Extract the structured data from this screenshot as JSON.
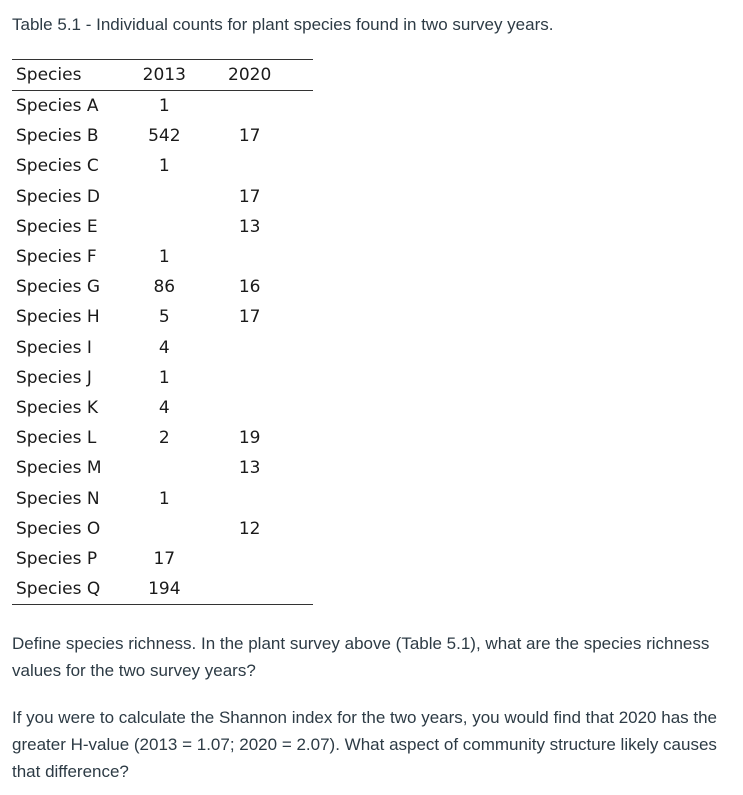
{
  "caption": "Table 5.1 - Individual counts for plant species found in two survey years.",
  "table": {
    "headers": [
      "Species",
      "2013",
      "2020"
    ],
    "rows": [
      {
        "species": "Species A",
        "y2013": "1",
        "y2020": ""
      },
      {
        "species": "Species B",
        "y2013": "542",
        "y2020": "17"
      },
      {
        "species": "Species C",
        "y2013": "1",
        "y2020": ""
      },
      {
        "species": "Species D",
        "y2013": "",
        "y2020": "17"
      },
      {
        "species": "Species E",
        "y2013": "",
        "y2020": "13"
      },
      {
        "species": "Species F",
        "y2013": "1",
        "y2020": ""
      },
      {
        "species": "Species G",
        "y2013": "86",
        "y2020": "16"
      },
      {
        "species": "Species H",
        "y2013": "5",
        "y2020": "17"
      },
      {
        "species": "Species I",
        "y2013": "4",
        "y2020": ""
      },
      {
        "species": "Species J",
        "y2013": "1",
        "y2020": ""
      },
      {
        "species": "Species K",
        "y2013": "4",
        "y2020": ""
      },
      {
        "species": "Species L",
        "y2013": "2",
        "y2020": "19"
      },
      {
        "species": "Species M",
        "y2013": "",
        "y2020": "13"
      },
      {
        "species": "Species N",
        "y2013": "1",
        "y2020": ""
      },
      {
        "species": "Species O",
        "y2013": "",
        "y2020": "12"
      },
      {
        "species": "Species P",
        "y2013": "17",
        "y2020": ""
      },
      {
        "species": "Species Q",
        "y2013": "194",
        "y2020": ""
      }
    ]
  },
  "questions": [
    "Define species richness. In the plant survey above (Table 5.1), what are the species richness values for the two survey years?",
    "If you were to calculate the Shannon index for the two years, you would find that 2020 has the greater H-value (2013 = 1.07; 2020 = 2.07). What aspect of community structure likely causes that difference?"
  ]
}
